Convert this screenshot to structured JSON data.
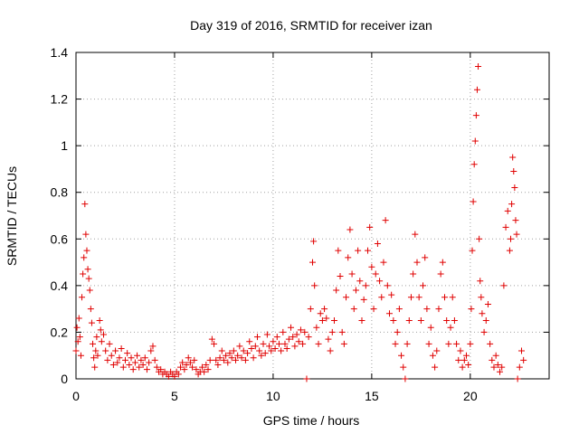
{
  "chart_data": {
    "type": "scatter",
    "title": "Day 319 of 2016, SRMTID for receiver izan",
    "xlabel": "GPS time / hours",
    "ylabel": "SRMTID / TECUs",
    "xlim": [
      0,
      24
    ],
    "ylim": [
      0,
      1.4
    ],
    "xticks": [
      0,
      5,
      10,
      15,
      20
    ],
    "xtick_labels": [
      "0",
      "5",
      "10",
      "15",
      "20"
    ],
    "yticks": [
      0,
      0.2,
      0.4,
      0.6,
      0.8,
      1.0,
      1.2,
      1.4
    ],
    "ytick_labels": [
      "0",
      "0.2",
      "0.4",
      "0.6",
      "0.8",
      "1",
      "1.2",
      "1.4"
    ],
    "grid": true,
    "marker": "+",
    "series": [
      {
        "name": "SRMTID",
        "color": "#e00000",
        "points": [
          [
            0.0,
            0.12
          ],
          [
            0.05,
            0.22
          ],
          [
            0.1,
            0.16
          ],
          [
            0.15,
            0.26
          ],
          [
            0.2,
            0.18
          ],
          [
            0.25,
            0.1
          ],
          [
            0.3,
            0.35
          ],
          [
            0.35,
            0.45
          ],
          [
            0.4,
            0.52
          ],
          [
            0.45,
            0.75
          ],
          [
            0.5,
            0.62
          ],
          [
            0.55,
            0.55
          ],
          [
            0.6,
            0.47
          ],
          [
            0.65,
            0.43
          ],
          [
            0.7,
            0.38
          ],
          [
            0.75,
            0.3
          ],
          [
            0.8,
            0.24
          ],
          [
            0.85,
            0.15
          ],
          [
            0.9,
            0.09
          ],
          [
            0.95,
            0.05
          ],
          [
            1.0,
            0.12
          ],
          [
            1.05,
            0.18
          ],
          [
            1.1,
            0.1
          ],
          [
            1.2,
            0.25
          ],
          [
            1.25,
            0.21
          ],
          [
            1.3,
            0.16
          ],
          [
            1.4,
            0.19
          ],
          [
            1.5,
            0.12
          ],
          [
            1.6,
            0.08
          ],
          [
            1.7,
            0.15
          ],
          [
            1.8,
            0.1
          ],
          [
            1.9,
            0.06
          ],
          [
            2.0,
            0.12
          ],
          [
            2.1,
            0.07
          ],
          [
            2.2,
            0.09
          ],
          [
            2.3,
            0.13
          ],
          [
            2.4,
            0.05
          ],
          [
            2.5,
            0.08
          ],
          [
            2.6,
            0.11
          ],
          [
            2.7,
            0.06
          ],
          [
            2.8,
            0.09
          ],
          [
            2.9,
            0.04
          ],
          [
            3.0,
            0.07
          ],
          [
            3.1,
            0.1
          ],
          [
            3.2,
            0.05
          ],
          [
            3.3,
            0.08
          ],
          [
            3.4,
            0.06
          ],
          [
            3.5,
            0.09
          ],
          [
            3.6,
            0.04
          ],
          [
            3.7,
            0.07
          ],
          [
            3.8,
            0.12
          ],
          [
            3.9,
            0.14
          ],
          [
            4.0,
            0.08
          ],
          [
            4.1,
            0.05
          ],
          [
            4.2,
            0.03
          ],
          [
            4.3,
            0.04
          ],
          [
            4.4,
            0.02
          ],
          [
            4.5,
            0.03
          ],
          [
            4.6,
            0.02
          ],
          [
            4.7,
            0.01
          ],
          [
            4.8,
            0.03
          ],
          [
            4.9,
            0.02
          ],
          [
            5.0,
            0.01
          ],
          [
            5.1,
            0.03
          ],
          [
            5.2,
            0.02
          ],
          [
            5.3,
            0.05
          ],
          [
            5.4,
            0.07
          ],
          [
            5.5,
            0.04
          ],
          [
            5.6,
            0.06
          ],
          [
            5.7,
            0.09
          ],
          [
            5.8,
            0.07
          ],
          [
            5.9,
            0.05
          ],
          [
            6.0,
            0.08
          ],
          [
            6.1,
            0.04
          ],
          [
            6.2,
            0.02
          ],
          [
            6.3,
            0.03
          ],
          [
            6.4,
            0.05
          ],
          [
            6.5,
            0.03
          ],
          [
            6.6,
            0.06
          ],
          [
            6.7,
            0.04
          ],
          [
            6.8,
            0.08
          ],
          [
            6.9,
            0.17
          ],
          [
            7.0,
            0.15
          ],
          [
            7.1,
            0.08
          ],
          [
            7.2,
            0.06
          ],
          [
            7.3,
            0.09
          ],
          [
            7.4,
            0.12
          ],
          [
            7.5,
            0.08
          ],
          [
            7.6,
            0.1
          ],
          [
            7.7,
            0.07
          ],
          [
            7.8,
            0.11
          ],
          [
            7.9,
            0.09
          ],
          [
            8.0,
            0.12
          ],
          [
            8.1,
            0.08
          ],
          [
            8.2,
            0.1
          ],
          [
            8.3,
            0.14
          ],
          [
            8.4,
            0.09
          ],
          [
            8.5,
            0.12
          ],
          [
            8.6,
            0.08
          ],
          [
            8.7,
            0.11
          ],
          [
            8.8,
            0.16
          ],
          [
            8.9,
            0.13
          ],
          [
            9.0,
            0.09
          ],
          [
            9.1,
            0.14
          ],
          [
            9.2,
            0.18
          ],
          [
            9.3,
            0.12
          ],
          [
            9.4,
            0.1
          ],
          [
            9.5,
            0.15
          ],
          [
            9.6,
            0.11
          ],
          [
            9.7,
            0.19
          ],
          [
            9.8,
            0.14
          ],
          [
            9.9,
            0.12
          ],
          [
            10.0,
            0.16
          ],
          [
            10.1,
            0.13
          ],
          [
            10.2,
            0.18
          ],
          [
            10.3,
            0.15
          ],
          [
            10.4,
            0.12
          ],
          [
            10.5,
            0.2
          ],
          [
            10.6,
            0.15
          ],
          [
            10.7,
            0.13
          ],
          [
            10.8,
            0.17
          ],
          [
            10.9,
            0.22
          ],
          [
            11.0,
            0.18
          ],
          [
            11.1,
            0.14
          ],
          [
            11.2,
            0.19
          ],
          [
            11.3,
            0.16
          ],
          [
            11.4,
            0.21
          ],
          [
            11.5,
            0.15
          ],
          [
            11.6,
            0.2
          ],
          [
            11.7,
            0.0
          ],
          [
            11.8,
            0.18
          ],
          [
            11.9,
            0.3
          ],
          [
            12.0,
            0.5
          ],
          [
            12.05,
            0.59
          ],
          [
            12.1,
            0.4
          ],
          [
            12.2,
            0.22
          ],
          [
            12.3,
            0.15
          ],
          [
            12.4,
            0.28
          ],
          [
            12.5,
            0.25
          ],
          [
            12.6,
            0.3
          ],
          [
            12.7,
            0.26
          ],
          [
            12.8,
            0.17
          ],
          [
            12.9,
            0.12
          ],
          [
            13.0,
            0.2
          ],
          [
            13.1,
            0.25
          ],
          [
            13.2,
            0.38
          ],
          [
            13.3,
            0.55
          ],
          [
            13.4,
            0.44
          ],
          [
            13.5,
            0.2
          ],
          [
            13.6,
            0.15
          ],
          [
            13.7,
            0.35
          ],
          [
            13.8,
            0.52
          ],
          [
            13.9,
            0.64
          ],
          [
            14.0,
            0.45
          ],
          [
            14.1,
            0.3
          ],
          [
            14.2,
            0.38
          ],
          [
            14.3,
            0.55
          ],
          [
            14.4,
            0.42
          ],
          [
            14.5,
            0.25
          ],
          [
            14.6,
            0.34
          ],
          [
            14.7,
            0.4
          ],
          [
            14.8,
            0.55
          ],
          [
            14.9,
            0.65
          ],
          [
            15.0,
            0.48
          ],
          [
            15.1,
            0.3
          ],
          [
            15.2,
            0.45
          ],
          [
            15.3,
            0.58
          ],
          [
            15.4,
            0.42
          ],
          [
            15.5,
            0.35
          ],
          [
            15.6,
            0.5
          ],
          [
            15.7,
            0.68
          ],
          [
            15.8,
            0.4
          ],
          [
            15.9,
            0.28
          ],
          [
            16.0,
            0.36
          ],
          [
            16.1,
            0.25
          ],
          [
            16.2,
            0.15
          ],
          [
            16.3,
            0.2
          ],
          [
            16.4,
            0.3
          ],
          [
            16.5,
            0.1
          ],
          [
            16.6,
            0.05
          ],
          [
            16.7,
            0.0
          ],
          [
            16.8,
            0.15
          ],
          [
            16.9,
            0.25
          ],
          [
            17.0,
            0.35
          ],
          [
            17.1,
            0.45
          ],
          [
            17.2,
            0.62
          ],
          [
            17.3,
            0.5
          ],
          [
            17.4,
            0.35
          ],
          [
            17.5,
            0.25
          ],
          [
            17.6,
            0.4
          ],
          [
            17.7,
            0.52
          ],
          [
            17.8,
            0.3
          ],
          [
            17.9,
            0.15
          ],
          [
            18.0,
            0.22
          ],
          [
            18.1,
            0.1
          ],
          [
            18.2,
            0.05
          ],
          [
            18.3,
            0.12
          ],
          [
            18.4,
            0.3
          ],
          [
            18.5,
            0.45
          ],
          [
            18.6,
            0.5
          ],
          [
            18.7,
            0.35
          ],
          [
            18.8,
            0.25
          ],
          [
            18.9,
            0.15
          ],
          [
            19.0,
            0.22
          ],
          [
            19.1,
            0.35
          ],
          [
            19.2,
            0.25
          ],
          [
            19.3,
            0.15
          ],
          [
            19.4,
            0.08
          ],
          [
            19.5,
            0.12
          ],
          [
            19.6,
            0.05
          ],
          [
            19.7,
            0.08
          ],
          [
            19.8,
            0.1
          ],
          [
            19.9,
            0.06
          ],
          [
            20.0,
            0.15
          ],
          [
            20.05,
            0.3
          ],
          [
            20.1,
            0.55
          ],
          [
            20.15,
            0.76
          ],
          [
            20.2,
            0.92
          ],
          [
            20.25,
            1.02
          ],
          [
            20.3,
            1.13
          ],
          [
            20.35,
            1.24
          ],
          [
            20.4,
            1.34
          ],
          [
            20.45,
            0.6
          ],
          [
            20.5,
            0.42
          ],
          [
            20.55,
            0.35
          ],
          [
            20.6,
            0.28
          ],
          [
            20.7,
            0.2
          ],
          [
            20.8,
            0.25
          ],
          [
            20.9,
            0.32
          ],
          [
            21.0,
            0.15
          ],
          [
            21.1,
            0.08
          ],
          [
            21.2,
            0.05
          ],
          [
            21.3,
            0.1
          ],
          [
            21.4,
            0.06
          ],
          [
            21.5,
            0.03
          ],
          [
            21.6,
            0.05
          ],
          [
            21.7,
            0.4
          ],
          [
            21.8,
            0.65
          ],
          [
            21.9,
            0.72
          ],
          [
            22.0,
            0.55
          ],
          [
            22.05,
            0.6
          ],
          [
            22.1,
            0.75
          ],
          [
            22.15,
            0.95
          ],
          [
            22.2,
            0.89
          ],
          [
            22.25,
            0.82
          ],
          [
            22.3,
            0.68
          ],
          [
            22.35,
            0.62
          ],
          [
            22.4,
            0.0
          ],
          [
            22.5,
            0.05
          ],
          [
            22.6,
            0.12
          ],
          [
            22.7,
            0.08
          ]
        ]
      }
    ]
  }
}
